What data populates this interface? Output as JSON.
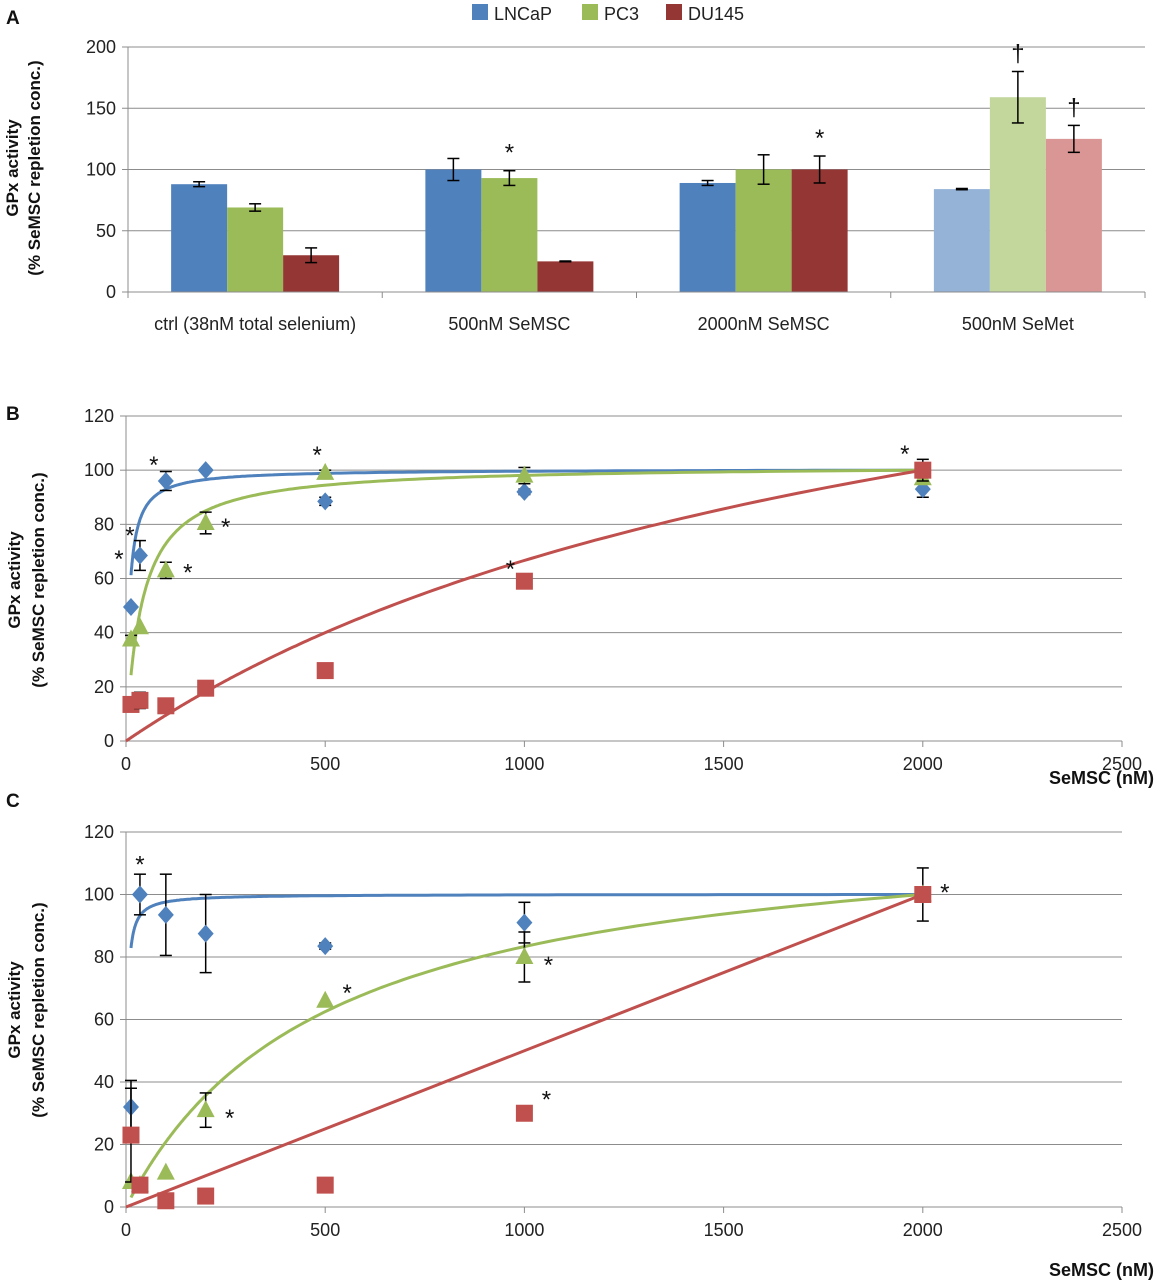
{
  "chart_data": [
    {
      "panel": "A",
      "type": "bar",
      "ylabel": "GPx activity",
      "ylabel2": "(% SeMSC repletion conc.)",
      "ylim": [
        0,
        200
      ],
      "yticks": [
        "0",
        "50",
        "100",
        "150",
        "200"
      ],
      "categories": [
        "ctrl (38nM total selenium)",
        "500nM SeMSC",
        "2000nM SeMSC",
        "500nM SeMet"
      ],
      "legend": [
        "LNCaP",
        "PC3",
        "DU145"
      ],
      "colors": [
        "#4f81bd",
        "#9bbb59",
        "#943634"
      ],
      "light_colors": [
        "#95b3d7",
        "#c3d69b",
        "#da9694"
      ],
      "series": [
        {
          "name": "LNCaP",
          "values": [
            88,
            100,
            89,
            84
          ],
          "errors": [
            2,
            9,
            2,
            0.5
          ]
        },
        {
          "name": "PC3",
          "values": [
            69,
            93,
            100,
            159
          ],
          "errors": [
            3,
            6,
            12,
            21
          ]
        },
        {
          "name": "DU145",
          "values": [
            30,
            25,
            100,
            125
          ],
          "errors": [
            6,
            0.3,
            11,
            11
          ]
        }
      ],
      "annotations": [
        {
          "category": 1,
          "series": 1,
          "text": "*"
        },
        {
          "category": 2,
          "series": 2,
          "text": "*"
        },
        {
          "category": 3,
          "series": 1,
          "text": "†"
        },
        {
          "category": 3,
          "series": 2,
          "text": "†"
        }
      ]
    },
    {
      "panel": "B",
      "type": "scatter",
      "ylabel": "GPx activity",
      "ylabel2": "(% SeMSC repletion conc.)",
      "xlabel": "SeMSC (nM)",
      "xlim": [
        0,
        2500
      ],
      "ylim": [
        0,
        120
      ],
      "xticks": [
        "0",
        "500",
        "1000",
        "1500",
        "2000",
        "2500"
      ],
      "yticks": [
        "0",
        "20",
        "40",
        "60",
        "80",
        "100",
        "120"
      ],
      "series": [
        {
          "name": "LNCaP",
          "marker": "diamond",
          "color": "#4f81bd",
          "x": [
            12.5,
            35,
            100,
            200,
            500,
            1000,
            2000
          ],
          "y": [
            49.5,
            68.5,
            96,
            100,
            88.5,
            92,
            93
          ],
          "err": [
            0,
            5.5,
            3.5,
            0.5,
            1.5,
            1,
            3
          ],
          "fit": {
            "kind": "hyperbolic",
            "k": 8
          }
        },
        {
          "name": "PC3",
          "marker": "triangle",
          "color": "#9bbb59",
          "x": [
            12.5,
            35,
            100,
            200,
            500,
            1000,
            2000
          ],
          "y": [
            37.5,
            42,
            63,
            80.5,
            99,
            98,
            97
          ],
          "err": [
            1.5,
            0,
            3,
            4,
            1,
            3,
            0
          ],
          "fit": {
            "kind": "hyperbolic",
            "k": 40
          }
        },
        {
          "name": "DU145",
          "marker": "square",
          "color": "#c0504d",
          "x": [
            12.5,
            35,
            100,
            200,
            500,
            1000,
            2000
          ],
          "y": [
            13.5,
            15,
            13,
            19.5,
            26,
            59,
            100
          ],
          "err": [
            0,
            3,
            0,
            0,
            0,
            0,
            4
          ],
          "fit": {
            "kind": "hyperbolic",
            "k": 2000
          }
        }
      ],
      "annotations": [
        {
          "x": 12.5,
          "y": 49.5,
          "dx": -12,
          "dy": -40,
          "text": "*"
        },
        {
          "x": 35,
          "y": 68.5,
          "dx": -10,
          "dy": -12,
          "text": "*"
        },
        {
          "x": 100,
          "y": 96,
          "dx": -12,
          "dy": -8,
          "text": "*"
        },
        {
          "x": 100,
          "y": 63,
          "dx": 22,
          "dy": 10,
          "text": "*"
        },
        {
          "x": 200,
          "y": 80.5,
          "dx": 20,
          "dy": 12,
          "text": "*"
        },
        {
          "x": 500,
          "y": 99,
          "dx": -8,
          "dy": -10,
          "text": "*"
        },
        {
          "x": 1000,
          "y": 59,
          "dx": -14,
          "dy": -4,
          "text": "*"
        },
        {
          "x": 2000,
          "y": 100,
          "dx": -18,
          "dy": -8,
          "text": "*"
        }
      ]
    },
    {
      "panel": "C",
      "type": "scatter",
      "ylabel": "GPx activity",
      "ylabel2": "(% SeMSC repletion conc.)",
      "xlabel": "SeMSC (nM)",
      "xlim": [
        0,
        2500
      ],
      "ylim": [
        0,
        120
      ],
      "xticks": [
        "0",
        "500",
        "1000",
        "1500",
        "2000",
        "2500"
      ],
      "yticks": [
        "0",
        "20",
        "40",
        "60",
        "80",
        "100",
        "120"
      ],
      "series": [
        {
          "name": "LNCaP",
          "marker": "diamond",
          "color": "#4f81bd",
          "x": [
            12.5,
            35,
            100,
            200,
            500,
            1000,
            2000
          ],
          "y": [
            32,
            100,
            93.5,
            87.5,
            83.5,
            91,
            100
          ],
          "err": [
            8.5,
            6.5,
            13,
            12.5,
            1,
            6.5,
            8.5
          ],
          "fit": {
            "kind": "hyperbolic",
            "k": 2.6
          }
        },
        {
          "name": "PC3",
          "marker": "triangle",
          "color": "#9bbb59",
          "x": [
            12.5,
            35,
            100,
            200,
            500,
            1000,
            2000
          ],
          "y": [
            8,
            7,
            11,
            31,
            66,
            80,
            100
          ],
          "err": [
            0,
            0,
            0,
            5.5,
            0,
            8,
            0
          ],
          "fit": {
            "kind": "hyperbolic",
            "k": 500
          }
        },
        {
          "name": "DU145",
          "marker": "square",
          "color": "#c0504d",
          "x": [
            12.5,
            35,
            100,
            200,
            500,
            1000,
            2000
          ],
          "y": [
            23,
            7,
            2,
            3.5,
            7,
            30,
            100
          ],
          "err": [
            15,
            0,
            0,
            0,
            0,
            0,
            0
          ],
          "fit": {
            "kind": "linear"
          }
        }
      ],
      "annotations": [
        {
          "x": 35,
          "y": 100,
          "dx": 0,
          "dy": -22,
          "text": "*"
        },
        {
          "x": 200,
          "y": 31,
          "dx": 24,
          "dy": 16,
          "text": "*"
        },
        {
          "x": 500,
          "y": 66,
          "dx": 22,
          "dy": 0,
          "text": "*"
        },
        {
          "x": 1000,
          "y": 80,
          "dx": 24,
          "dy": 16,
          "text": "*"
        },
        {
          "x": 1000,
          "y": 30,
          "dx": 22,
          "dy": -6,
          "text": "*"
        },
        {
          "x": 2000,
          "y": 100,
          "dx": 22,
          "dy": 6,
          "text": "*"
        }
      ]
    }
  ]
}
